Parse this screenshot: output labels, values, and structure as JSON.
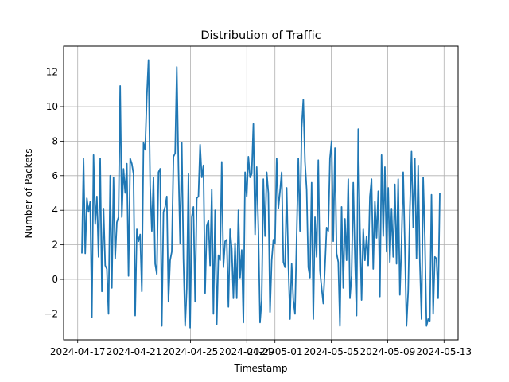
{
  "chart_data": {
    "type": "line",
    "title": "Distribution of Traffic",
    "xlabel": "Timestamp",
    "ylabel": "Number of Packets",
    "x_start": "2024-04-16",
    "x_end": "2024-05-14",
    "x_ticks": [
      "2024-04-17",
      "2024-04-21",
      "2024-04-25",
      "2024-04-29",
      "2024-05-01",
      "2024-05-05",
      "2024-05-09",
      "2024-05-13"
    ],
    "ylim": [
      -3.5,
      13.5
    ],
    "y_ticks": [
      -2,
      0,
      2,
      4,
      6,
      8,
      10,
      12
    ],
    "grid": true,
    "series": [
      {
        "color": "#1f77b4",
        "values": [
          1.5,
          7.0,
          1.5,
          4.7,
          3.9,
          4.5,
          -2.2,
          7.2,
          3.2,
          4.8,
          1.3,
          7.0,
          -0.7,
          4.1,
          0.8,
          0.6,
          -2.0,
          6.0,
          -0.5,
          5.9,
          1.2,
          3.3,
          3.6,
          11.2,
          3.6,
          6.4,
          5.0,
          6.7,
          0.2,
          7.0,
          6.7,
          6.1,
          -2.1,
          2.9,
          2.2,
          2.6,
          -0.7,
          7.9,
          7.5,
          10.6,
          12.7,
          5.4,
          2.8,
          5.9,
          0.9,
          0.3,
          6.2,
          6.4,
          -2.7,
          3.9,
          4.2,
          4.8,
          -1.3,
          1.1,
          1.6,
          7.1,
          7.3,
          12.3,
          6.5,
          2.1,
          7.9,
          1.2,
          -2.7,
          -0.5,
          6.1,
          -2.8,
          3.6,
          4.2,
          -1.3,
          4.7,
          4.8,
          7.8,
          5.9,
          6.6,
          -0.8,
          3.1,
          3.4,
          0.8,
          5.2,
          -2.0,
          4.0,
          -2.6,
          1.4,
          1.1,
          6.8,
          0.7,
          2.2,
          2.3,
          -1.6,
          2.9,
          1.8,
          -1.1,
          2.1,
          -1.1,
          4.0,
          0.1,
          1.7,
          -2.5,
          6.2,
          4.8,
          7.1,
          5.9,
          6.1,
          9.0,
          2.6,
          6.5,
          2.9,
          -2.5,
          -1.2,
          5.8,
          2.5,
          6.2,
          5.0,
          -1.9,
          1.1,
          2.3,
          2.1,
          7.0,
          4.1,
          5.1,
          6.2,
          1.0,
          0.7,
          5.3,
          0.9,
          -2.3,
          0.9,
          -1.2,
          -2.0,
          2.5,
          7.0,
          2.8,
          8.8,
          10.4,
          6.8,
          5.2,
          0.7,
          0.1,
          5.6,
          -2.3,
          3.6,
          1.3,
          6.9,
          0.5,
          -0.5,
          -1.4,
          0.7,
          3.0,
          2.8,
          7.0,
          8.0,
          2.2,
          7.6,
          1.5,
          1.0,
          -2.7,
          4.2,
          -0.5,
          3.5,
          1.1,
          5.8,
          -1.1,
          0.2,
          5.6,
          1.3,
          -2.1,
          8.7,
          3.0,
          -1.2,
          2.9,
          1.1,
          2.5,
          0.8,
          4.8,
          5.8,
          0.6,
          4.5,
          2.4,
          5.1,
          -1.0,
          7.2,
          2.5,
          6.5,
          1.6,
          5.3,
          1.0,
          4.1,
          1.3,
          5.5,
          0.9,
          5.8,
          -0.9,
          2.1,
          6.2,
          2.0,
          -2.7,
          -0.7,
          4.0,
          7.4,
          3.0,
          7.0,
          1.2,
          6.6,
          1.0,
          -2.3,
          5.9,
          2.5,
          -2.7,
          -2.3,
          -2.4,
          4.9,
          -2.0,
          1.3,
          1.2,
          -1.1,
          5.0
        ]
      }
    ]
  }
}
